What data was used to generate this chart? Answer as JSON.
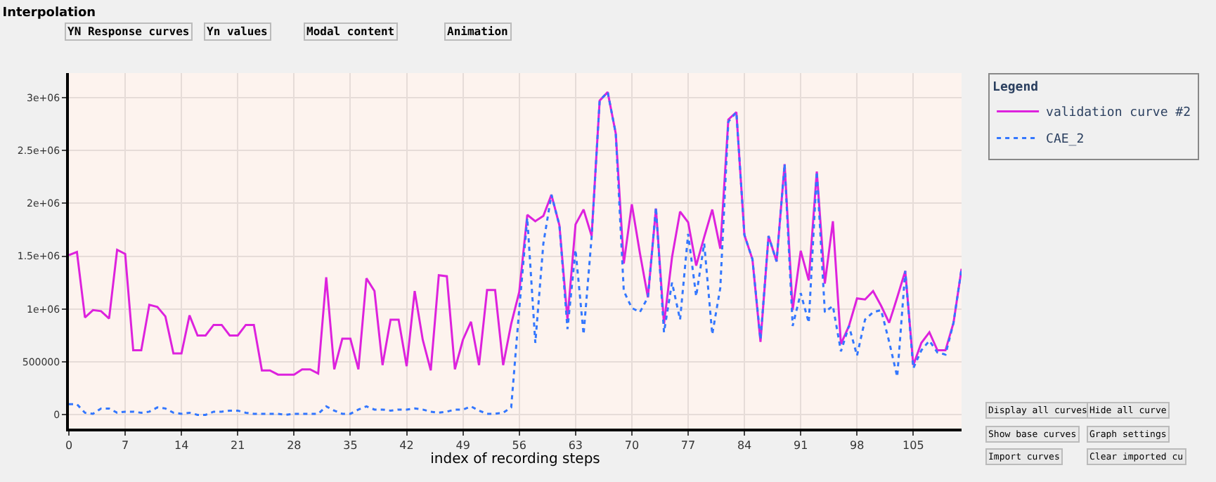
{
  "chart_data": {
    "type": "line",
    "title": "Interpolation",
    "xlabel": "index of recording steps",
    "legend_title": "Legend",
    "legend": "right",
    "grid": true,
    "marker": "none",
    "annotations": [
      "YN Response curves",
      "Yn values",
      "Modal content",
      "Animation",
      "Display all curves",
      "Hide all curve",
      "Show base curves",
      "Graph settings",
      "Import curves",
      "Clear imported cu"
    ],
    "x": [
      0,
      1,
      2,
      3,
      4,
      5,
      6,
      7,
      8,
      9,
      10,
      11,
      12,
      13,
      14,
      15,
      16,
      17,
      18,
      19,
      20,
      21,
      22,
      23,
      24,
      25,
      26,
      27,
      28,
      29,
      30,
      31,
      32,
      33,
      34,
      35,
      36,
      37,
      38,
      39,
      40,
      41,
      42,
      43,
      44,
      45,
      46,
      47,
      48,
      49,
      50,
      51,
      52,
      53,
      54,
      55,
      56,
      57,
      58,
      59,
      60,
      61,
      62,
      63,
      64,
      65,
      66,
      67,
      68,
      69,
      70,
      71,
      72,
      73,
      74,
      75,
      76,
      77,
      78,
      79,
      80,
      81,
      82,
      83,
      84,
      85,
      86,
      87,
      88,
      89,
      90,
      91,
      92,
      93,
      94,
      95,
      96,
      97,
      98,
      99,
      100,
      101,
      102,
      103,
      104,
      105,
      106,
      107,
      108,
      109,
      110,
      111
    ],
    "xlim": [
      0,
      111
    ],
    "xticks": [
      0,
      7,
      14,
      21,
      28,
      35,
      42,
      49,
      56,
      63,
      70,
      77,
      84,
      91,
      98,
      105
    ],
    "ylim": [
      -130000,
      3230000
    ],
    "yticks": [
      0,
      500000,
      {
        "value": 1000000,
        "label": "1e+06"
      },
      {
        "value": 1500000,
        "label": "1.5e+06"
      },
      {
        "value": 2000000,
        "label": "2e+06"
      },
      {
        "value": 2500000,
        "label": "2.5e+06"
      },
      {
        "value": 3000000,
        "label": "3e+06"
      }
    ],
    "series": [
      {
        "name": "validation curve #2",
        "color": "#dd22dd",
        "line_style": "solid",
        "values": [
          1510000,
          1540000,
          920000,
          990000,
          980000,
          910000,
          1560000,
          1520000,
          610000,
          610000,
          1040000,
          1020000,
          930000,
          580000,
          580000,
          940000,
          750000,
          750000,
          850000,
          850000,
          750000,
          750000,
          850000,
          850000,
          420000,
          420000,
          380000,
          380000,
          380000,
          430000,
          430000,
          390000,
          1300000,
          430000,
          720000,
          720000,
          430000,
          1290000,
          1170000,
          470000,
          900000,
          900000,
          460000,
          1170000,
          710000,
          420000,
          1320000,
          1310000,
          430000,
          710000,
          880000,
          470000,
          1180000,
          1180000,
          470000,
          860000,
          1160000,
          1890000,
          1830000,
          1880000,
          2080000,
          1790000,
          900000,
          1800000,
          1940000,
          1690000,
          2970000,
          3050000,
          2660000,
          1430000,
          1990000,
          1530000,
          1110000,
          1950000,
          860000,
          1490000,
          1920000,
          1820000,
          1410000,
          1680000,
          1940000,
          1570000,
          2790000,
          2860000,
          1700000,
          1470000,
          690000,
          1690000,
          1450000,
          2370000,
          990000,
          1550000,
          1270000,
          2300000,
          1240000,
          1830000,
          670000,
          840000,
          1100000,
          1090000,
          1170000,
          1030000,
          870000,
          1110000,
          1360000,
          470000,
          680000,
          780000,
          610000,
          610000,
          870000,
          1380000
        ]
      },
      {
        "name": "CAE_2",
        "color": "#3377ff",
        "line_style": "dotted",
        "values": [
          100000,
          100000,
          20000,
          10000,
          60000,
          60000,
          20000,
          30000,
          30000,
          20000,
          30000,
          70000,
          60000,
          20000,
          10000,
          20000,
          0,
          0,
          30000,
          30000,
          40000,
          40000,
          20000,
          10000,
          10000,
          10000,
          10000,
          0,
          10000,
          10000,
          10000,
          10000,
          80000,
          40000,
          10000,
          10000,
          50000,
          80000,
          50000,
          50000,
          40000,
          50000,
          50000,
          60000,
          50000,
          30000,
          20000,
          30000,
          50000,
          50000,
          80000,
          40000,
          10000,
          10000,
          20000,
          70000,
          1000000,
          1860000,
          680000,
          1620000,
          2080000,
          1790000,
          810000,
          1560000,
          760000,
          1680000,
          2970000,
          3050000,
          2660000,
          1170000,
          1010000,
          970000,
          1110000,
          1960000,
          780000,
          1250000,
          900000,
          1710000,
          1120000,
          1620000,
          760000,
          1200000,
          2770000,
          2860000,
          1700000,
          1470000,
          710000,
          1690000,
          1450000,
          2370000,
          840000,
          1150000,
          870000,
          2300000,
          970000,
          1030000,
          600000,
          840000,
          560000,
          900000,
          970000,
          990000,
          690000,
          360000,
          1360000,
          440000,
          610000,
          700000,
          590000,
          570000,
          870000,
          1380000
        ]
      }
    ]
  }
}
